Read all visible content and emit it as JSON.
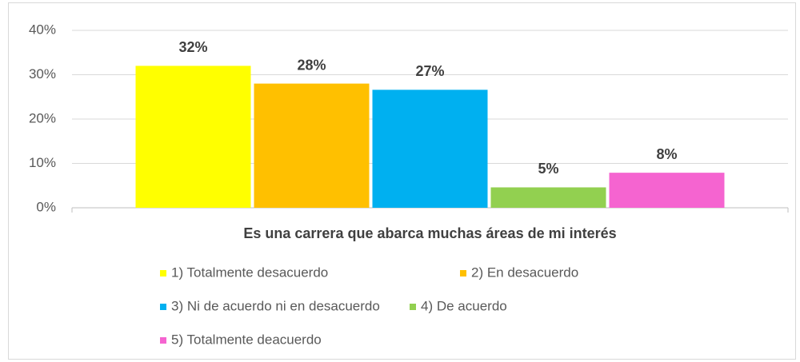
{
  "chart_data": {
    "type": "bar",
    "categories": [
      "Es una carrera que abarca muchas áreas de mi interés"
    ],
    "series": [
      {
        "name": "1) Totalmente desacuerdo",
        "color": "#ffff00",
        "values": [
          32
        ],
        "value_labels": [
          "32%"
        ]
      },
      {
        "name": "2) En desacuerdo",
        "color": "#ffc000",
        "values": [
          28
        ],
        "value_labels": [
          "28%"
        ]
      },
      {
        "name": "3) Ni de acuerdo ni en desacuerdo",
        "color": "#00b0f0",
        "values": [
          26.6
        ],
        "value_labels": [
          "27%"
        ]
      },
      {
        "name": "4) De acuerdo",
        "color": "#92d050",
        "values": [
          4.6
        ],
        "value_labels": [
          "5%"
        ]
      },
      {
        "name": "5) Totalmente deacuerdo",
        "color": "#f564d0",
        "values": [
          7.9
        ],
        "value_labels": [
          "8%"
        ]
      }
    ],
    "ylim": [
      0,
      40
    ],
    "yticks": [
      {
        "value": 0,
        "label": "0%"
      },
      {
        "value": 10,
        "label": "10%"
      },
      {
        "value": 20,
        "label": "20%"
      },
      {
        "value": 30,
        "label": "30%"
      },
      {
        "value": 40,
        "label": "40%"
      }
    ],
    "grid": true,
    "legend": "bottom"
  }
}
